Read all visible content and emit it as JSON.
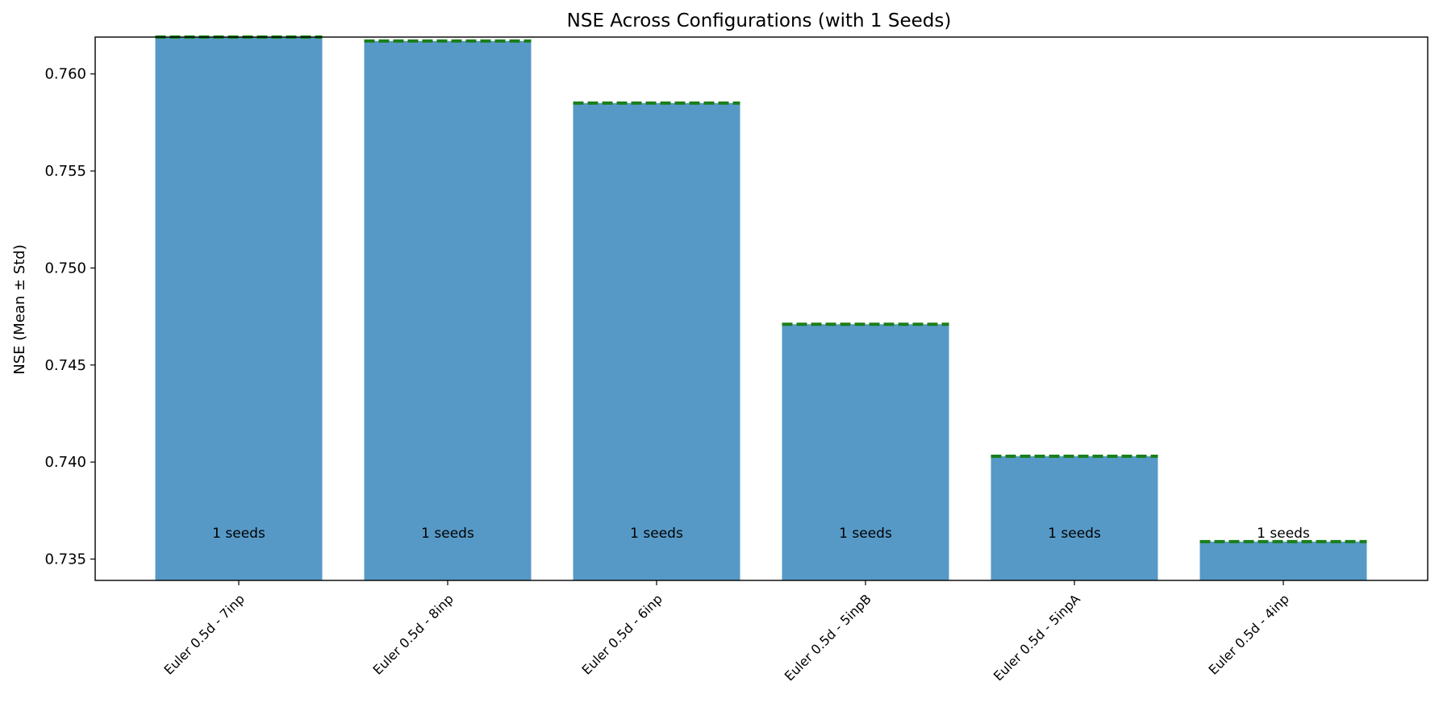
{
  "chart_data": {
    "type": "bar",
    "title": "NSE Across Configurations (with 1 Seeds)",
    "xlabel": "",
    "ylabel": "NSE (Mean ± Std)",
    "ylim": [
      0.7339,
      0.7619
    ],
    "yticks": [
      0.735,
      0.74,
      0.745,
      0.75,
      0.755,
      0.76
    ],
    "ytick_labels": [
      "0.735",
      "0.740",
      "0.745",
      "0.750",
      "0.755",
      "0.760"
    ],
    "categories": [
      "Euler 0.5d - 7inp",
      "Euler 0.5d - 8inp",
      "Euler 0.5d - 6inp",
      "Euler 0.5d - 5inpB",
      "Euler 0.5d - 5inpA",
      "Euler 0.5d - 4inp"
    ],
    "values": [
      0.7619,
      0.7617,
      0.7585,
      0.7471,
      0.7403,
      0.7359
    ],
    "std": [
      0,
      0,
      0,
      0,
      0,
      0
    ],
    "bar_labels": [
      "1 seeds",
      "1 seeds",
      "1 seeds",
      "1 seeds",
      "1 seeds",
      "1 seeds"
    ],
    "bar_color": "#5799c6",
    "mean_line_color": "#1a7f1a",
    "grid": false,
    "legend": "none"
  }
}
